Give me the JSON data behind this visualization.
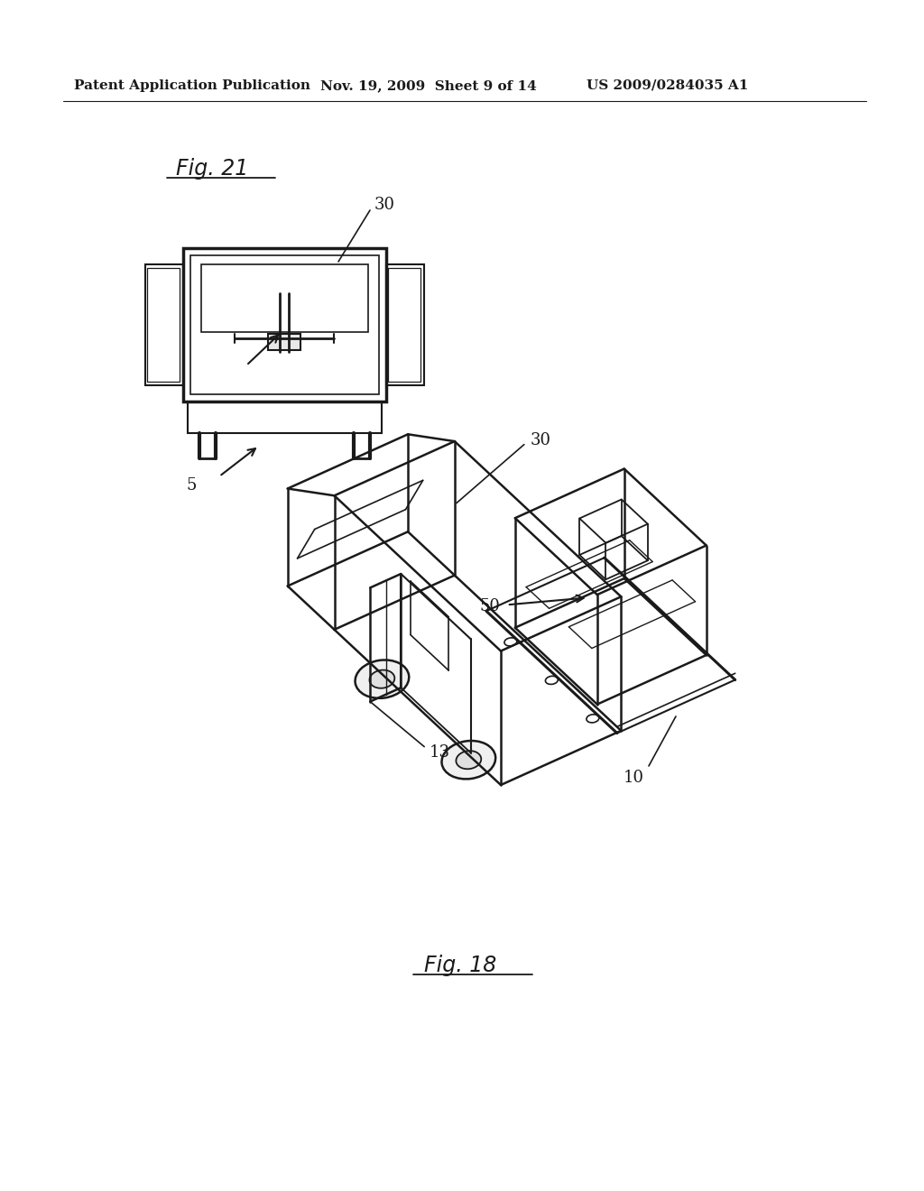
{
  "background_color": "#ffffff",
  "header_left": "Patent Application Publication",
  "header_mid": "Nov. 19, 2009  Sheet 9 of 14",
  "header_right": "US 2009/0284035 A1",
  "fig21_label": "Fig. 21",
  "fig18_label": "Fig. 18",
  "line_color": "#1a1a1a",
  "text_color": "#1a1a1a",
  "header_fontsize": 11,
  "ref_fontsize": 13,
  "fig_label_fontsize": 16
}
